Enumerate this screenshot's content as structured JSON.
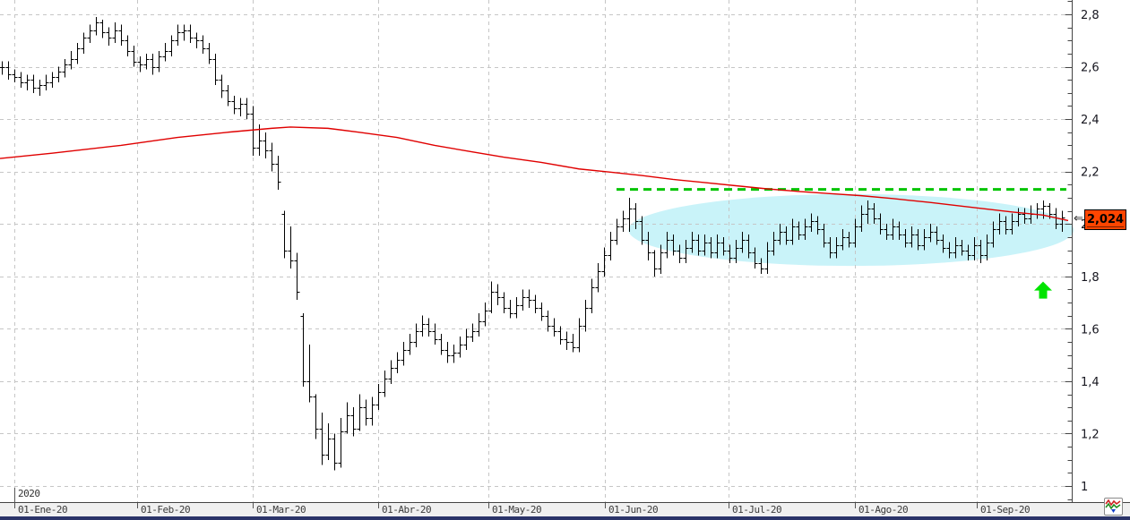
{
  "chart_data": {
    "type": "ohlc",
    "title": "",
    "x_axis": {
      "year_label": "2020",
      "ticks": [
        {
          "label": "01-Ene-20",
          "i": 2
        },
        {
          "label": "01-Feb-20",
          "i": 21.57
        },
        {
          "label": "01-Mar-20",
          "i": 40
        },
        {
          "label": "01-Abr-20",
          "i": 60
        },
        {
          "label": "01-May-20",
          "i": 77.57
        },
        {
          "label": "01-Jun-20",
          "i": 96.14
        },
        {
          "label": "01-Jul-20",
          "i": 115.86
        },
        {
          "label": "01-Ago-20",
          "i": 136
        },
        {
          "label": "01-Sep-20",
          "i": 155.43
        }
      ]
    },
    "y_axis": {
      "min": 0.94,
      "max": 2.855,
      "major_step": 0.2,
      "minor_step": 0.05,
      "labels": [
        "2,8",
        "2,6",
        "2,4",
        "2,2",
        "2",
        "1,8",
        "1,6",
        "1,4",
        "1,2",
        "1"
      ],
      "label_values": [
        2.8,
        2.6,
        2.4,
        2.2,
        2.0,
        1.8,
        1.6,
        1.4,
        1.2,
        1.0
      ],
      "grid": true
    },
    "bars_hlc": [
      [
        2.62,
        2.57,
        2.6
      ],
      [
        2.62,
        2.55,
        2.57
      ],
      [
        2.59,
        2.54,
        2.56
      ],
      [
        2.58,
        2.52,
        2.54
      ],
      [
        2.57,
        2.51,
        2.55
      ],
      [
        2.57,
        2.5,
        2.52
      ],
      [
        2.55,
        2.49,
        2.53
      ],
      [
        2.57,
        2.51,
        2.54
      ],
      [
        2.58,
        2.52,
        2.56
      ],
      [
        2.6,
        2.54,
        2.58
      ],
      [
        2.63,
        2.56,
        2.61
      ],
      [
        2.66,
        2.59,
        2.63
      ],
      [
        2.69,
        2.61,
        2.67
      ],
      [
        2.73,
        2.65,
        2.71
      ],
      [
        2.76,
        2.69,
        2.74
      ],
      [
        2.79,
        2.72,
        2.77
      ],
      [
        2.78,
        2.71,
        2.73
      ],
      [
        2.75,
        2.68,
        2.71
      ],
      [
        2.77,
        2.69,
        2.74
      ],
      [
        2.76,
        2.68,
        2.7
      ],
      [
        2.72,
        2.64,
        2.66
      ],
      [
        2.68,
        2.6,
        2.62
      ],
      [
        2.64,
        2.58,
        2.61
      ],
      [
        2.65,
        2.59,
        2.63
      ],
      [
        2.65,
        2.57,
        2.6
      ],
      [
        2.66,
        2.58,
        2.64
      ],
      [
        2.69,
        2.62,
        2.66
      ],
      [
        2.72,
        2.64,
        2.7
      ],
      [
        2.76,
        2.68,
        2.73
      ],
      [
        2.76,
        2.7,
        2.74
      ],
      [
        2.76,
        2.69,
        2.71
      ],
      [
        2.73,
        2.67,
        2.7
      ],
      [
        2.72,
        2.65,
        2.67
      ],
      [
        2.69,
        2.61,
        2.63
      ],
      [
        2.65,
        2.53,
        2.55
      ],
      [
        2.57,
        2.48,
        2.51
      ],
      [
        2.53,
        2.45,
        2.47
      ],
      [
        2.49,
        2.42,
        2.44
      ],
      [
        2.48,
        2.41,
        2.46
      ],
      [
        2.48,
        2.4,
        2.42
      ],
      [
        2.45,
        2.26,
        2.29
      ],
      [
        2.38,
        2.26,
        2.32
      ],
      [
        2.35,
        2.25,
        2.28
      ],
      [
        2.31,
        2.2,
        2.23
      ],
      [
        2.26,
        2.13,
        2.16
      ],
      [
        2.05,
        1.87,
        1.9
      ],
      [
        1.99,
        1.83,
        1.86
      ],
      [
        1.89,
        1.71,
        1.74
      ],
      [
        1.66,
        1.38,
        1.4
      ],
      [
        1.54,
        1.32,
        1.34
      ],
      [
        1.35,
        1.18,
        1.22
      ],
      [
        1.28,
        1.08,
        1.12
      ],
      [
        1.24,
        1.1,
        1.18
      ],
      [
        1.2,
        1.06,
        1.09
      ],
      [
        1.26,
        1.07,
        1.21
      ],
      [
        1.32,
        1.2,
        1.27
      ],
      [
        1.3,
        1.19,
        1.22
      ],
      [
        1.35,
        1.21,
        1.3
      ],
      [
        1.33,
        1.23,
        1.26
      ],
      [
        1.34,
        1.23,
        1.31
      ],
      [
        1.39,
        1.29,
        1.36
      ],
      [
        1.44,
        1.34,
        1.41
      ],
      [
        1.48,
        1.39,
        1.45
      ],
      [
        1.51,
        1.43,
        1.48
      ],
      [
        1.55,
        1.46,
        1.52
      ],
      [
        1.58,
        1.5,
        1.55
      ],
      [
        1.62,
        1.53,
        1.59
      ],
      [
        1.65,
        1.57,
        1.62
      ],
      [
        1.64,
        1.57,
        1.59
      ],
      [
        1.62,
        1.54,
        1.56
      ],
      [
        1.58,
        1.5,
        1.52
      ],
      [
        1.55,
        1.47,
        1.5
      ],
      [
        1.54,
        1.47,
        1.51
      ],
      [
        1.57,
        1.49,
        1.54
      ],
      [
        1.6,
        1.52,
        1.57
      ],
      [
        1.62,
        1.55,
        1.59
      ],
      [
        1.66,
        1.57,
        1.63
      ],
      [
        1.7,
        1.61,
        1.67
      ],
      [
        1.78,
        1.66,
        1.74
      ],
      [
        1.77,
        1.69,
        1.72
      ],
      [
        1.74,
        1.66,
        1.68
      ],
      [
        1.71,
        1.64,
        1.66
      ],
      [
        1.72,
        1.64,
        1.69
      ],
      [
        1.75,
        1.67,
        1.72
      ],
      [
        1.75,
        1.68,
        1.71
      ],
      [
        1.73,
        1.66,
        1.68
      ],
      [
        1.7,
        1.63,
        1.65
      ],
      [
        1.67,
        1.59,
        1.61
      ],
      [
        1.64,
        1.57,
        1.59
      ],
      [
        1.61,
        1.54,
        1.56
      ],
      [
        1.59,
        1.52,
        1.55
      ],
      [
        1.58,
        1.51,
        1.53
      ],
      [
        1.64,
        1.51,
        1.61
      ],
      [
        1.71,
        1.59,
        1.68
      ],
      [
        1.79,
        1.66,
        1.76
      ],
      [
        1.85,
        1.74,
        1.82
      ],
      [
        1.91,
        1.8,
        1.88
      ],
      [
        1.97,
        1.86,
        1.94
      ],
      [
        2.02,
        1.92,
        1.99
      ],
      [
        2.05,
        1.97,
        2.02
      ],
      [
        2.1,
        1.97,
        2.06
      ],
      [
        2.08,
        1.98,
        2.01
      ],
      [
        2.03,
        1.92,
        1.94
      ],
      [
        1.97,
        1.86,
        1.89
      ],
      [
        1.9,
        1.8,
        1.83
      ],
      [
        1.92,
        1.81,
        1.89
      ],
      [
        1.97,
        1.87,
        1.94
      ],
      [
        1.96,
        1.88,
        1.9
      ],
      [
        1.92,
        1.85,
        1.87
      ],
      [
        1.94,
        1.85,
        1.91
      ],
      [
        1.97,
        1.89,
        1.94
      ],
      [
        1.96,
        1.88,
        1.9
      ],
      [
        1.96,
        1.88,
        1.93
      ],
      [
        1.95,
        1.87,
        1.89
      ],
      [
        1.96,
        1.87,
        1.93
      ],
      [
        1.95,
        1.88,
        1.9
      ],
      [
        1.92,
        1.85,
        1.87
      ],
      [
        1.94,
        1.85,
        1.91
      ],
      [
        1.97,
        1.89,
        1.94
      ],
      [
        1.96,
        1.87,
        1.89
      ],
      [
        1.91,
        1.83,
        1.85
      ],
      [
        1.87,
        1.81,
        1.83
      ],
      [
        1.93,
        1.81,
        1.9
      ],
      [
        1.97,
        1.88,
        1.94
      ],
      [
        2.0,
        1.92,
        1.97
      ],
      [
        1.99,
        1.92,
        1.94
      ],
      [
        2.02,
        1.92,
        1.99
      ],
      [
        2.01,
        1.94,
        1.96
      ],
      [
        2.02,
        1.94,
        1.99
      ],
      [
        2.04,
        1.97,
        2.01
      ],
      [
        2.03,
        1.96,
        1.98
      ],
      [
        2.0,
        1.91,
        1.93
      ],
      [
        1.95,
        1.87,
        1.89
      ],
      [
        1.95,
        1.87,
        1.92
      ],
      [
        1.98,
        1.9,
        1.95
      ],
      [
        1.97,
        1.91,
        1.93
      ],
      [
        2.02,
        1.91,
        1.99
      ],
      [
        2.07,
        1.97,
        2.04
      ],
      [
        2.09,
        2.0,
        2.06
      ],
      [
        2.08,
        2.0,
        2.02
      ],
      [
        2.04,
        1.96,
        1.98
      ],
      [
        2.0,
        1.94,
        1.96
      ],
      [
        2.02,
        1.94,
        1.99
      ],
      [
        2.01,
        1.94,
        1.96
      ],
      [
        1.98,
        1.91,
        1.93
      ],
      [
        1.99,
        1.91,
        1.96
      ],
      [
        1.98,
        1.9,
        1.92
      ],
      [
        1.98,
        1.9,
        1.95
      ],
      [
        2.0,
        1.93,
        1.97
      ],
      [
        1.99,
        1.92,
        1.94
      ],
      [
        1.96,
        1.89,
        1.91
      ],
      [
        1.93,
        1.87,
        1.89
      ],
      [
        1.95,
        1.87,
        1.92
      ],
      [
        1.94,
        1.88,
        1.9
      ],
      [
        1.92,
        1.86,
        1.88
      ],
      [
        1.95,
        1.86,
        1.92
      ],
      [
        1.94,
        1.85,
        1.88
      ],
      [
        1.96,
        1.86,
        1.93
      ],
      [
        2.01,
        1.91,
        1.98
      ],
      [
        2.04,
        1.96,
        2.01
      ],
      [
        2.03,
        1.96,
        1.98
      ],
      [
        2.04,
        1.96,
        2.01
      ],
      [
        2.06,
        1.99,
        2.04
      ],
      [
        2.06,
        2.0,
        2.02
      ],
      [
        2.07,
        2.0,
        2.04
      ],
      [
        2.08,
        2.02,
        2.06
      ],
      [
        2.09,
        2.02,
        2.07
      ],
      [
        2.08,
        2.02,
        2.04
      ],
      [
        2.06,
        1.98,
        2.0
      ],
      [
        2.05,
        1.97,
        2.024
      ]
    ],
    "moving_average": [
      [
        0,
        2.25
      ],
      [
        8,
        2.27
      ],
      [
        19,
        2.3
      ],
      [
        28,
        2.33
      ],
      [
        36,
        2.35
      ],
      [
        43,
        2.365
      ],
      [
        46,
        2.37
      ],
      [
        52,
        2.365
      ],
      [
        57,
        2.35
      ],
      [
        63,
        2.33
      ],
      [
        69,
        2.3
      ],
      [
        75,
        2.275
      ],
      [
        80,
        2.255
      ],
      [
        86,
        2.235
      ],
      [
        92,
        2.21
      ],
      [
        97,
        2.198
      ],
      [
        102,
        2.185
      ],
      [
        107,
        2.17
      ],
      [
        112,
        2.158
      ],
      [
        117,
        2.146
      ],
      [
        122,
        2.134
      ],
      [
        127,
        2.124
      ],
      [
        132,
        2.116
      ],
      [
        137,
        2.108
      ],
      [
        142,
        2.097
      ],
      [
        148,
        2.082
      ],
      [
        153,
        2.068
      ],
      [
        157,
        2.057
      ],
      [
        161,
        2.046
      ],
      [
        166,
        2.034
      ],
      [
        170,
        2.013
      ]
    ],
    "resistance_line": {
      "value": 2.132,
      "from_i": 98,
      "to_i": 169.7,
      "style": "dashed"
    },
    "highlight_ellipse": {
      "center_i": 135.4,
      "center_value": 1.977,
      "radius_i": 35.5,
      "radius_value": 0.137
    },
    "signal_arrow": {
      "i": 166,
      "value": 1.78,
      "direction": "up"
    },
    "last_price": {
      "text": "2,024",
      "value": 2.024
    },
    "axis_pointer": "⇐",
    "style": {
      "bar_color": "#000000",
      "ma_color": "#e00000",
      "resistance_color": "#00c400",
      "ellipse_color": "#c9f3f9",
      "arrow_color": "#00e400",
      "last_price_bg": "#ff4500",
      "grid_color": "#c6c6c6",
      "axis_color": "#444444",
      "y_label_color": "#16161f",
      "legend_position": "none"
    }
  },
  "taskbar": {
    "color": "#2b3469"
  },
  "tool_button": {
    "icon": "chart-signals-icon"
  }
}
